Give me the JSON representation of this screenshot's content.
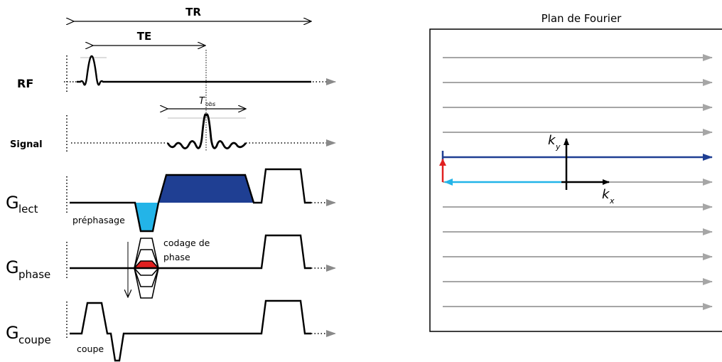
{
  "sequence": {
    "tr_label": "TR",
    "te_label": "TE",
    "tobs_label": "T",
    "tobs_sub": "obs",
    "rows": {
      "rf": "RF",
      "signal": "Signal",
      "g_lect_main": "G",
      "g_lect_sub": "lect",
      "g_phase_main": "G",
      "g_phase_sub": "phase",
      "g_coupe_main": "G",
      "g_coupe_sub": "coupe"
    },
    "annotations": {
      "prephasage": "préphasage",
      "codage_line1": "codage de",
      "codage_line2": "phase",
      "coupe": "coupe"
    }
  },
  "fourier": {
    "title": "Plan de Fourier",
    "ky_main": "k",
    "ky_sub": "y",
    "kx_main": "k",
    "kx_sub": "x"
  },
  "colors": {
    "dark_blue": "#1f3f93",
    "light_blue": "#23b4e8",
    "red": "#e02020",
    "grey_line": "#a0a0a0"
  }
}
